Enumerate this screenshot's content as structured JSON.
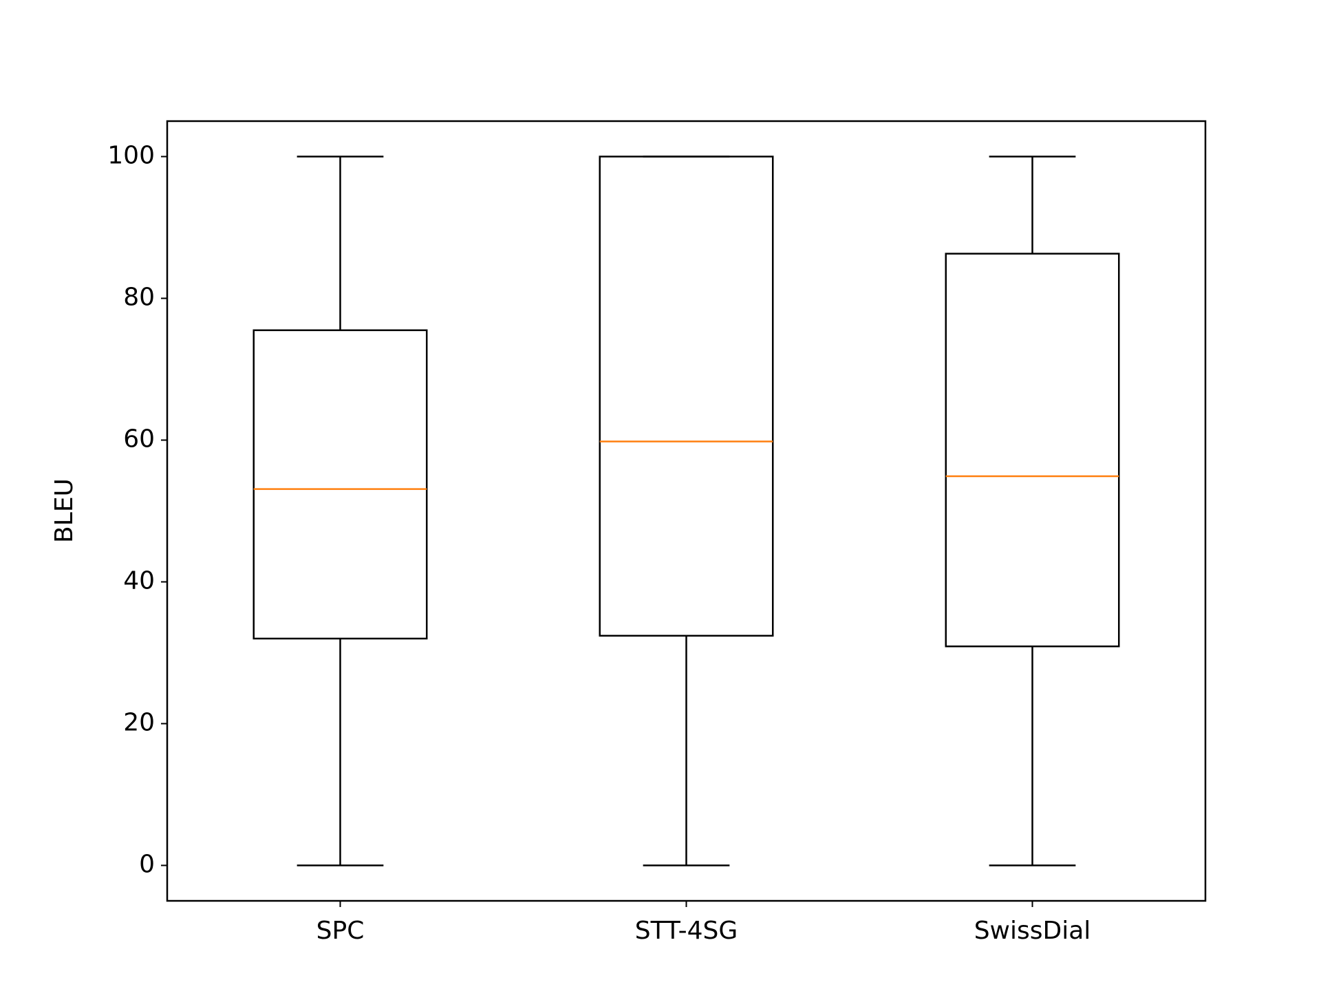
{
  "chart_data": {
    "type": "box",
    "y_label": "BLEU",
    "categories": [
      "SPC",
      "STT-4SG",
      "SwissDial"
    ],
    "min": [
      0,
      0,
      0
    ],
    "q1": [
      32,
      32.4,
      30.9
    ],
    "median": [
      53.1,
      59.8,
      54.9
    ],
    "q3": [
      75.5,
      100,
      86.3
    ],
    "max": [
      100,
      100,
      100
    ],
    "box_color": "#000000",
    "median_color": "#ff7f0e",
    "ylim": [
      -5,
      105
    ],
    "yticks": [
      0,
      20,
      40,
      60,
      80,
      100
    ]
  }
}
